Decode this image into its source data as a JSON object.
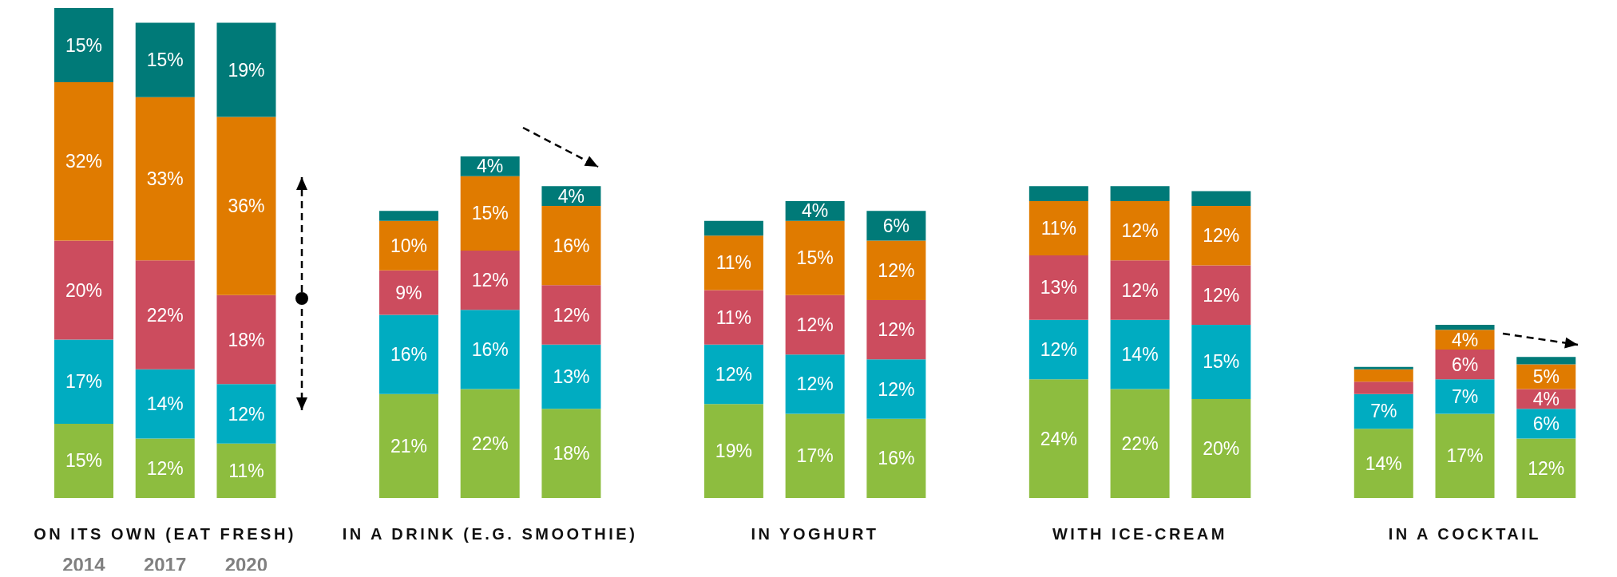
{
  "chart_data": {
    "type": "bar",
    "stacked": true,
    "categories": [
      "2014",
      "2017",
      "2020",
      null,
      null,
      null,
      null,
      null,
      null,
      null,
      null,
      null,
      null,
      null,
      null,
      null,
      null,
      null,
      null
    ],
    "annotations": [
      "ON ITS OWN (EAT FRESH)",
      "IN A DRINK (E.G. SMOOTHIE)",
      "IN YOGHURT",
      "WITH ICE-CREAM",
      "IN A COCKTAIL"
    ],
    "series": [
      {
        "color": "#8dbd3f",
        "values": [
          15,
          12,
          11,
          null,
          21,
          22,
          18,
          null,
          19,
          17,
          16,
          null,
          24,
          22,
          20,
          null,
          14,
          17,
          12
        ],
        "value_labels": [
          "15%",
          "12%",
          "11%",
          null,
          "21%",
          "22%",
          "18%",
          null,
          "19%",
          "17%",
          "16%",
          null,
          "24%",
          "22%",
          "20%",
          null,
          "14%",
          "17%",
          "12%"
        ]
      },
      {
        "color": "#00acc1",
        "values": [
          17,
          14,
          12,
          null,
          16,
          16,
          13,
          null,
          12,
          12,
          12,
          null,
          12,
          14,
          15,
          null,
          7,
          7,
          6
        ],
        "value_labels": [
          "17%",
          "14%",
          "12%",
          null,
          "16%",
          "16%",
          "13%",
          null,
          "12%",
          "12%",
          "12%",
          null,
          "12%",
          "14%",
          "15%",
          null,
          "7%",
          "7%",
          "6%"
        ]
      },
      {
        "color": "#cc4c5e",
        "values": [
          20,
          22,
          18,
          null,
          9,
          12,
          12,
          null,
          11,
          12,
          12,
          null,
          13,
          12,
          12,
          null,
          2.5,
          6,
          4
        ],
        "value_labels": [
          "20%",
          "22%",
          "18%",
          null,
          "9%",
          "12%",
          "12%",
          null,
          "11%",
          "12%",
          "12%",
          null,
          "13%",
          "12%",
          "12%",
          null,
          null,
          "6%",
          "4%"
        ]
      },
      {
        "color": "#e07b00",
        "values": [
          32,
          33,
          36,
          null,
          10,
          15,
          16,
          null,
          11,
          15,
          12,
          null,
          11,
          12,
          12,
          null,
          2.5,
          4,
          5
        ],
        "value_labels": [
          "32%",
          "33%",
          "36%",
          null,
          "10%",
          "15%",
          "16%",
          null,
          "11%",
          "15%",
          "12%",
          null,
          "11%",
          "12%",
          "12%",
          null,
          null,
          "4%",
          "5%"
        ]
      },
      {
        "color": "#007a78",
        "values": [
          15,
          15,
          19,
          null,
          2,
          4,
          4,
          null,
          3,
          4,
          6,
          null,
          3,
          3,
          3,
          null,
          0.5,
          1,
          1.5
        ],
        "value_labels": [
          "15%",
          "15%",
          "19%",
          null,
          null,
          "4%",
          "4%",
          null,
          null,
          "4%",
          "6%",
          null,
          null,
          null,
          null,
          null,
          null,
          null,
          null
        ]
      }
    ]
  }
}
